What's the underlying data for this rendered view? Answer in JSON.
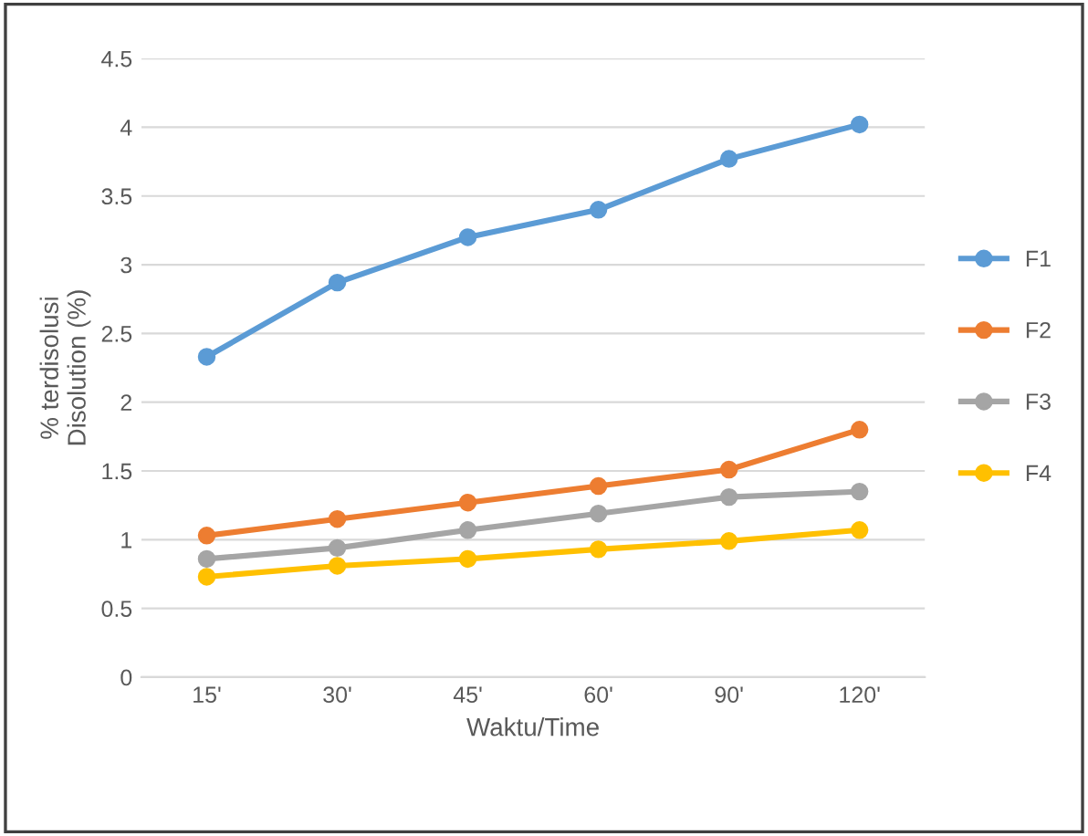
{
  "chart_data": {
    "type": "line",
    "xlabel": "Waktu/Time",
    "ylabel": "% terdisolusi\nDisolution (%)",
    "categories": [
      "15'",
      "30'",
      "45'",
      "60'",
      "90'",
      "120'"
    ],
    "series": [
      {
        "name": "F1",
        "color": "#5b9bd5",
        "values": [
          2.33,
          2.87,
          3.2,
          3.4,
          3.77,
          4.02
        ]
      },
      {
        "name": "F2",
        "color": "#ed7d31",
        "values": [
          1.03,
          1.15,
          1.27,
          1.39,
          1.51,
          1.8
        ]
      },
      {
        "name": "F3",
        "color": "#a5a5a5",
        "values": [
          0.86,
          0.94,
          1.07,
          1.19,
          1.31,
          1.35
        ]
      },
      {
        "name": "F4",
        "color": "#ffc000",
        "values": [
          0.73,
          0.81,
          0.86,
          0.93,
          0.99,
          1.07
        ]
      }
    ],
    "ylim": [
      0,
      4.5
    ],
    "yticks": [
      0,
      0.5,
      1,
      1.5,
      2,
      2.5,
      3,
      3.5,
      4,
      4.5
    ],
    "grid": "y",
    "legend": "right",
    "marker": "circle",
    "line_style": "solid"
  }
}
